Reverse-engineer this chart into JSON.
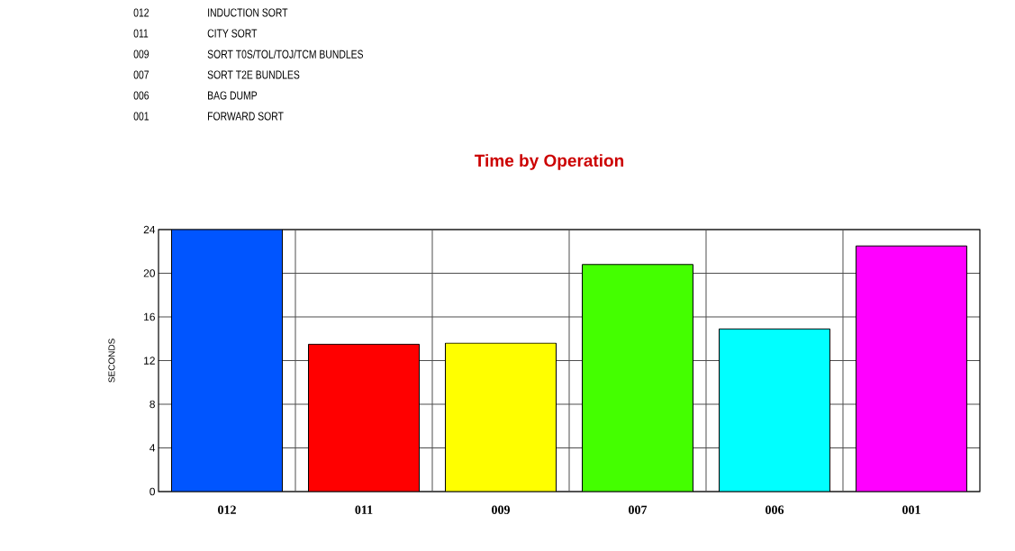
{
  "chart_data": {
    "type": "bar",
    "title": "Time by Operation",
    "ylabel": "SECONDS",
    "categories": [
      "012",
      "011",
      "009",
      "007",
      "006",
      "001"
    ],
    "values": [
      24,
      13.5,
      13.6,
      20.8,
      14.9,
      22.5
    ],
    "colors": [
      "#0055ff",
      "#ff0000",
      "#ffff00",
      "#44ff00",
      "#00ffff",
      "#ff00ff"
    ],
    "ylim": [
      0,
      24
    ],
    "yticks": [
      0,
      4,
      8,
      12,
      16,
      20,
      24
    ],
    "grid": true,
    "annotations": [
      "012",
      "INDUCTION SORT",
      "011",
      "CITY SORT",
      "009",
      "SORT T0S/TOL/TOJ/TCM BUNDLES",
      "007",
      "SORT T2E BUNDLES",
      "006",
      "BAG DUMP",
      "001",
      "FORWARD SORT"
    ]
  }
}
